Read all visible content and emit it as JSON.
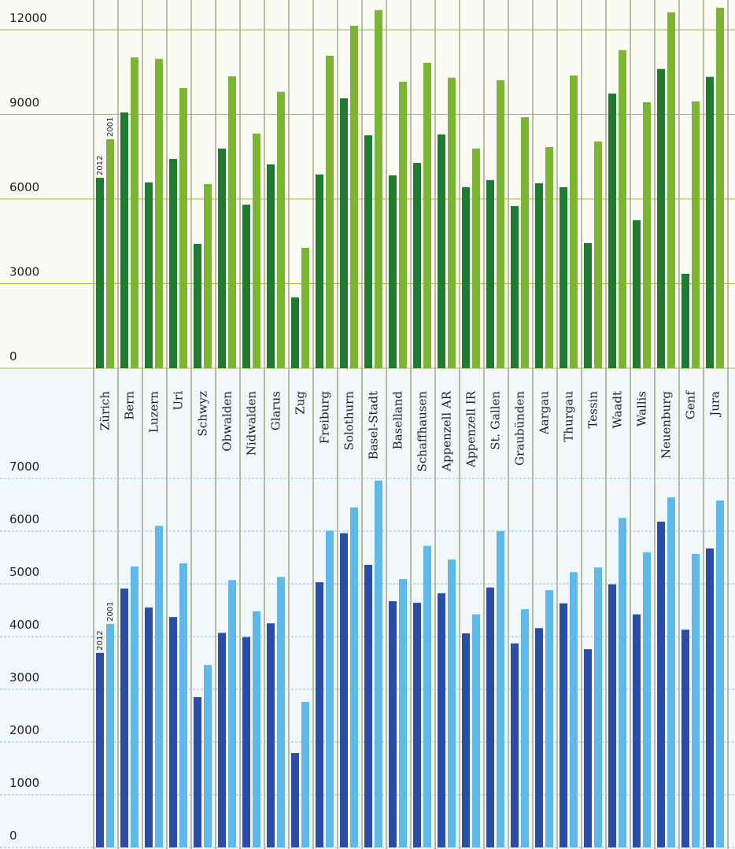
{
  "chart_data": [
    {
      "type": "bar",
      "categories": [
        "Zürich",
        "Bern",
        "Luzern",
        "Uri",
        "Schwyz",
        "Obwalden",
        "Nidwalden",
        "Glarus",
        "Zug",
        "Freiburg",
        "Solothurn",
        "Basel-Stadt",
        "Baselland",
        "Schaffhausen",
        "Appenzell AR",
        "Appenzell IR",
        "St. Gallen",
        "Graubünden",
        "Aargau",
        "Thurgau",
        "Tessin",
        "Waadt",
        "Wallis",
        "Neuenburg",
        "Genf",
        "Jura"
      ],
      "series": [
        {
          "name": "2012",
          "color": "#1f7a32",
          "values": [
            6750,
            9070,
            6590,
            7420,
            4410,
            7790,
            5800,
            7230,
            2510,
            6870,
            9570,
            8260,
            6840,
            7280,
            8290,
            6420,
            6670,
            5750,
            6560,
            6420,
            4440,
            9740,
            5250,
            10610,
            3350,
            10330
          ]
        },
        {
          "name": "2001",
          "color": "#7cb531",
          "values": [
            8120,
            11020,
            10970,
            9930,
            6530,
            10350,
            8320,
            9800,
            4270,
            11080,
            12140,
            12700,
            10160,
            10830,
            10300,
            7790,
            10210,
            8900,
            7840,
            10380,
            8040,
            11280,
            9430,
            12620,
            9460,
            12780
          ]
        }
      ],
      "ylim": [
        0,
        13000
      ],
      "yticks": [
        0,
        3000,
        6000,
        9000,
        12000
      ],
      "grid": true
    },
    {
      "type": "bar",
      "series": [
        {
          "name": "2012",
          "color": "#2a4ea6",
          "values": [
            3690,
            4910,
            4550,
            4370,
            2850,
            4070,
            3990,
            4250,
            1790,
            5030,
            5960,
            5360,
            4670,
            4640,
            4820,
            4060,
            4930,
            3870,
            4160,
            4630,
            3760,
            4990,
            4420,
            6180,
            4130,
            5670
          ]
        },
        {
          "name": "2001",
          "color": "#5db9e8",
          "values": [
            4240,
            5330,
            6100,
            5390,
            3460,
            5070,
            4480,
            5130,
            2760,
            6010,
            6450,
            6960,
            5090,
            5720,
            5460,
            4420,
            6000,
            4520,
            4880,
            5220,
            5310,
            6250,
            5600,
            6640,
            5570,
            6580
          ]
        }
      ],
      "ylim": [
        0,
        7000
      ],
      "yticks": [
        0,
        1000,
        2000,
        3000,
        4000,
        5000,
        6000,
        7000
      ],
      "grid": true
    }
  ]
}
